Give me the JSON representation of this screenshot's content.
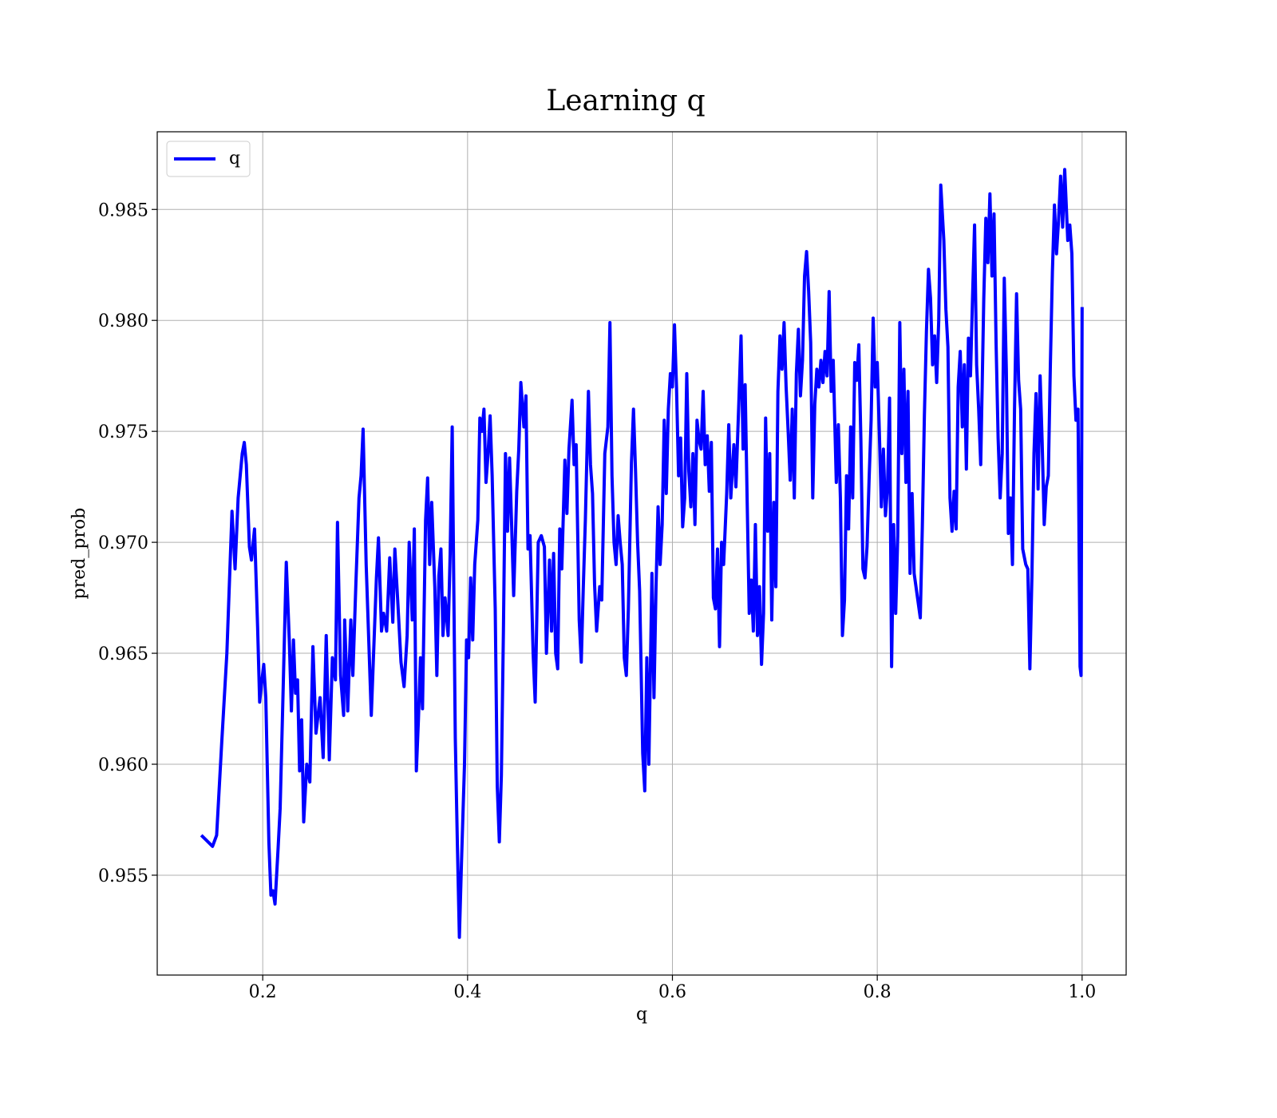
{
  "chart_data": {
    "type": "line",
    "title": "Learning q",
    "x_label": "q",
    "y_label": "pred_prob",
    "legend": "upper left",
    "grid": true,
    "xlim": [
      0.097,
      1.043
    ],
    "ylim": [
      0.9505,
      0.9885
    ],
    "xticks": [
      0.2,
      0.4,
      0.6,
      0.8,
      {
        "value": 1.0,
        "label": "1.0"
      }
    ],
    "yticks": [
      0.955,
      {
        "value": 0.96,
        "label": "0.960"
      },
      0.965,
      {
        "value": 0.97,
        "label": "0.970"
      },
      0.975,
      {
        "value": 0.98,
        "label": "0.980"
      },
      0.985
    ],
    "x": [
      0.14,
      0.151,
      0.155,
      0.16,
      0.165,
      0.17,
      0.173,
      0.176,
      0.18,
      0.182,
      0.184,
      0.187,
      0.189,
      0.192,
      0.195,
      0.197,
      0.199,
      0.201,
      0.203,
      0.206,
      0.208,
      0.21,
      0.212,
      0.215,
      0.217,
      0.22,
      0.223,
      0.226,
      0.228,
      0.23,
      0.232,
      0.234,
      0.236,
      0.238,
      0.24,
      0.243,
      0.246,
      0.249,
      0.252,
      0.256,
      0.259,
      0.262,
      0.265,
      0.268,
      0.271,
      0.273,
      0.276,
      0.279,
      0.28,
      0.283,
      0.286,
      0.288,
      0.291,
      0.294,
      0.296,
      0.298,
      0.301,
      0.303,
      0.306,
      0.308,
      0.311,
      0.313,
      0.316,
      0.318,
      0.321,
      0.324,
      0.327,
      0.329,
      0.332,
      0.335,
      0.338,
      0.341,
      0.343,
      0.346,
      0.348,
      0.35,
      0.352,
      0.354,
      0.356,
      0.359,
      0.361,
      0.363,
      0.365,
      0.368,
      0.37,
      0.372,
      0.374,
      0.376,
      0.378,
      0.381,
      0.383,
      0.385,
      0.388,
      0.39,
      0.392,
      0.394,
      0.397,
      0.399,
      0.401,
      0.403,
      0.405,
      0.407,
      0.41,
      0.412,
      0.414,
      0.416,
      0.418,
      0.42,
      0.422,
      0.424,
      0.427,
      0.429,
      0.431,
      0.433,
      0.435,
      0.437,
      0.439,
      0.441,
      0.443,
      0.445,
      0.448,
      0.45,
      0.452,
      0.455,
      0.457,
      0.459,
      0.461,
      0.464,
      0.466,
      0.469,
      0.472,
      0.475,
      0.477,
      0.48,
      0.482,
      0.484,
      0.486,
      0.488,
      0.49,
      0.492,
      0.495,
      0.497,
      0.499,
      0.502,
      0.504,
      0.506,
      0.509,
      0.511,
      0.513,
      0.515,
      0.518,
      0.52,
      0.522,
      0.524,
      0.526,
      0.529,
      0.531,
      0.534,
      0.537,
      0.539,
      0.541,
      0.543,
      0.545,
      0.547,
      0.549,
      0.551,
      0.553,
      0.555,
      0.557,
      0.56,
      0.562,
      0.564,
      0.566,
      0.568,
      0.571,
      0.573,
      0.575,
      0.577,
      0.58,
      0.582,
      0.584,
      0.586,
      0.588,
      0.59,
      0.592,
      0.594,
      0.596,
      0.598,
      0.6,
      0.602,
      0.604,
      0.606,
      0.608,
      0.61,
      0.612,
      0.614,
      0.616,
      0.618,
      0.62,
      0.622,
      0.624,
      0.626,
      0.628,
      0.63,
      0.632,
      0.634,
      0.636,
      0.638,
      0.64,
      0.642,
      0.644,
      0.646,
      0.648,
      0.65,
      0.653,
      0.655,
      0.657,
      0.66,
      0.662,
      0.665,
      0.667,
      0.669,
      0.671,
      0.673,
      0.675,
      0.677,
      0.679,
      0.681,
      0.683,
      0.685,
      0.687,
      0.689,
      0.691,
      0.693,
      0.695,
      0.697,
      0.699,
      0.701,
      0.703,
      0.705,
      0.707,
      0.709,
      0.711,
      0.713,
      0.715,
      0.717,
      0.719,
      0.721,
      0.723,
      0.725,
      0.727,
      0.729,
      0.731,
      0.733,
      0.735,
      0.737,
      0.739,
      0.741,
      0.743,
      0.745,
      0.747,
      0.749,
      0.751,
      0.753,
      0.755,
      0.757,
      0.76,
      0.762,
      0.764,
      0.766,
      0.768,
      0.77,
      0.772,
      0.774,
      0.776,
      0.778,
      0.78,
      0.782,
      0.784,
      0.786,
      0.788,
      0.79,
      0.792,
      0.794,
      0.796,
      0.798,
      0.8,
      0.802,
      0.804,
      0.806,
      0.808,
      0.81,
      0.812,
      0.814,
      0.816,
      0.818,
      0.82,
      0.822,
      0.824,
      0.826,
      0.828,
      0.83,
      0.832,
      0.834,
      0.836,
      0.842,
      0.844,
      0.846,
      0.848,
      0.85,
      0.852,
      0.854,
      0.856,
      0.858,
      0.86,
      0.862,
      0.865,
      0.867,
      0.869,
      0.871,
      0.873,
      0.875,
      0.877,
      0.879,
      0.881,
      0.883,
      0.885,
      0.887,
      0.889,
      0.891,
      0.893,
      0.895,
      0.897,
      0.899,
      0.901,
      0.904,
      0.906,
      0.908,
      0.91,
      0.912,
      0.914,
      0.916,
      0.918,
      0.92,
      0.922,
      0.924,
      0.926,
      0.928,
      0.93,
      0.932,
      0.934,
      0.936,
      0.938,
      0.94,
      0.942,
      0.945,
      0.947,
      0.949,
      0.951,
      0.953,
      0.955,
      0.957,
      0.959,
      0.961,
      0.963,
      0.965,
      0.967,
      0.969,
      0.971,
      0.973,
      0.975,
      0.977,
      0.979,
      0.981,
      0.983,
      0.986,
      0.988,
      0.99,
      0.992,
      0.994,
      0.996,
      0.998,
      0.999,
      1.0
    ],
    "series": [
      {
        "name": "q",
        "color": "#0000ff",
        "values": [
          0.9568,
          0.9563,
          0.9568,
          0.961,
          0.965,
          0.9714,
          0.9688,
          0.972,
          0.974,
          0.9745,
          0.9735,
          0.9698,
          0.9692,
          0.9706,
          0.9662,
          0.9628,
          0.9637,
          0.9645,
          0.963,
          0.9565,
          0.9541,
          0.9543,
          0.9537,
          0.9562,
          0.958,
          0.9635,
          0.9691,
          0.9655,
          0.9624,
          0.9656,
          0.9632,
          0.9638,
          0.9597,
          0.962,
          0.9574,
          0.96,
          0.9592,
          0.9653,
          0.9614,
          0.963,
          0.9603,
          0.9658,
          0.9602,
          0.9648,
          0.9638,
          0.9709,
          0.964,
          0.9622,
          0.9665,
          0.9624,
          0.9665,
          0.964,
          0.9682,
          0.972,
          0.973,
          0.9751,
          0.969,
          0.9663,
          0.9622,
          0.9647,
          0.9684,
          0.9702,
          0.966,
          0.9668,
          0.966,
          0.9693,
          0.9664,
          0.9697,
          0.9672,
          0.9646,
          0.9635,
          0.9658,
          0.97,
          0.9665,
          0.9706,
          0.9597,
          0.962,
          0.9648,
          0.9625,
          0.971,
          0.9729,
          0.969,
          0.9718,
          0.968,
          0.964,
          0.9685,
          0.9697,
          0.9658,
          0.9675,
          0.9658,
          0.9695,
          0.9752,
          0.9612,
          0.9565,
          0.9522,
          0.9555,
          0.96,
          0.9656,
          0.9648,
          0.9684,
          0.9656,
          0.969,
          0.971,
          0.9756,
          0.975,
          0.976,
          0.9727,
          0.974,
          0.9757,
          0.973,
          0.967,
          0.959,
          0.9565,
          0.9595,
          0.966,
          0.974,
          0.9705,
          0.9738,
          0.9708,
          0.9676,
          0.9723,
          0.9742,
          0.9772,
          0.9752,
          0.9766,
          0.9697,
          0.9703,
          0.965,
          0.9628,
          0.97,
          0.9703,
          0.9698,
          0.965,
          0.9692,
          0.966,
          0.9695,
          0.965,
          0.9643,
          0.9706,
          0.9688,
          0.9737,
          0.9713,
          0.9742,
          0.9764,
          0.9735,
          0.9744,
          0.9665,
          0.9646,
          0.968,
          0.971,
          0.9768,
          0.9735,
          0.9722,
          0.9681,
          0.966,
          0.968,
          0.9674,
          0.974,
          0.9752,
          0.9799,
          0.973,
          0.97,
          0.969,
          0.9712,
          0.97,
          0.969,
          0.9648,
          0.964,
          0.967,
          0.9736,
          0.976,
          0.9732,
          0.97,
          0.9678,
          0.9605,
          0.9588,
          0.9648,
          0.96,
          0.9686,
          0.963,
          0.968,
          0.9716,
          0.969,
          0.9708,
          0.9755,
          0.9722,
          0.976,
          0.9776,
          0.977,
          0.9798,
          0.977,
          0.973,
          0.9747,
          0.9707,
          0.972,
          0.9776,
          0.9732,
          0.9716,
          0.974,
          0.9708,
          0.9755,
          0.9746,
          0.9742,
          0.9768,
          0.9735,
          0.9748,
          0.9723,
          0.9745,
          0.9675,
          0.967,
          0.9697,
          0.9653,
          0.97,
          0.969,
          0.9722,
          0.9753,
          0.972,
          0.9744,
          0.9725,
          0.9765,
          0.9793,
          0.9742,
          0.9771,
          0.9718,
          0.9668,
          0.9683,
          0.966,
          0.9708,
          0.9658,
          0.968,
          0.9645,
          0.9668,
          0.9756,
          0.9705,
          0.974,
          0.9665,
          0.9718,
          0.968,
          0.9768,
          0.9793,
          0.9778,
          0.9799,
          0.977,
          0.975,
          0.9728,
          0.976,
          0.972,
          0.9776,
          0.9796,
          0.9766,
          0.9782,
          0.982,
          0.9831,
          0.9813,
          0.979,
          0.972,
          0.9762,
          0.9778,
          0.977,
          0.9782,
          0.9772,
          0.9786,
          0.9775,
          0.9813,
          0.9768,
          0.9782,
          0.9727,
          0.9753,
          0.972,
          0.9658,
          0.9674,
          0.973,
          0.9706,
          0.9752,
          0.972,
          0.9781,
          0.9773,
          0.9789,
          0.9746,
          0.9688,
          0.9684,
          0.9698,
          0.9728,
          0.9755,
          0.9801,
          0.977,
          0.9781,
          0.975,
          0.9716,
          0.9742,
          0.9712,
          0.9725,
          0.9765,
          0.9644,
          0.9708,
          0.9668,
          0.9703,
          0.9799,
          0.974,
          0.9778,
          0.9727,
          0.9768,
          0.9686,
          0.9722,
          0.9686,
          0.9666,
          0.9707,
          0.9757,
          0.9795,
          0.9823,
          0.981,
          0.978,
          0.9793,
          0.9772,
          0.98,
          0.9861,
          0.9836,
          0.9805,
          0.9788,
          0.972,
          0.9705,
          0.9723,
          0.9706,
          0.977,
          0.9786,
          0.9752,
          0.978,
          0.9733,
          0.9792,
          0.9775,
          0.981,
          0.9843,
          0.978,
          0.976,
          0.9735,
          0.981,
          0.9846,
          0.9826,
          0.9857,
          0.982,
          0.9848,
          0.979,
          0.9747,
          0.972,
          0.974,
          0.9819,
          0.9778,
          0.9704,
          0.972,
          0.969,
          0.976,
          0.9812,
          0.9773,
          0.976,
          0.9697,
          0.969,
          0.9688,
          0.9643,
          0.9685,
          0.974,
          0.9767,
          0.9724,
          0.9775,
          0.9745,
          0.9708,
          0.9725,
          0.973,
          0.978,
          0.9822,
          0.9852,
          0.983,
          0.9845,
          0.9865,
          0.9842,
          0.9868,
          0.9836,
          0.9843,
          0.983,
          0.9775,
          0.9755,
          0.976,
          0.9644,
          0.964,
          0.9806
        ]
      }
    ]
  }
}
